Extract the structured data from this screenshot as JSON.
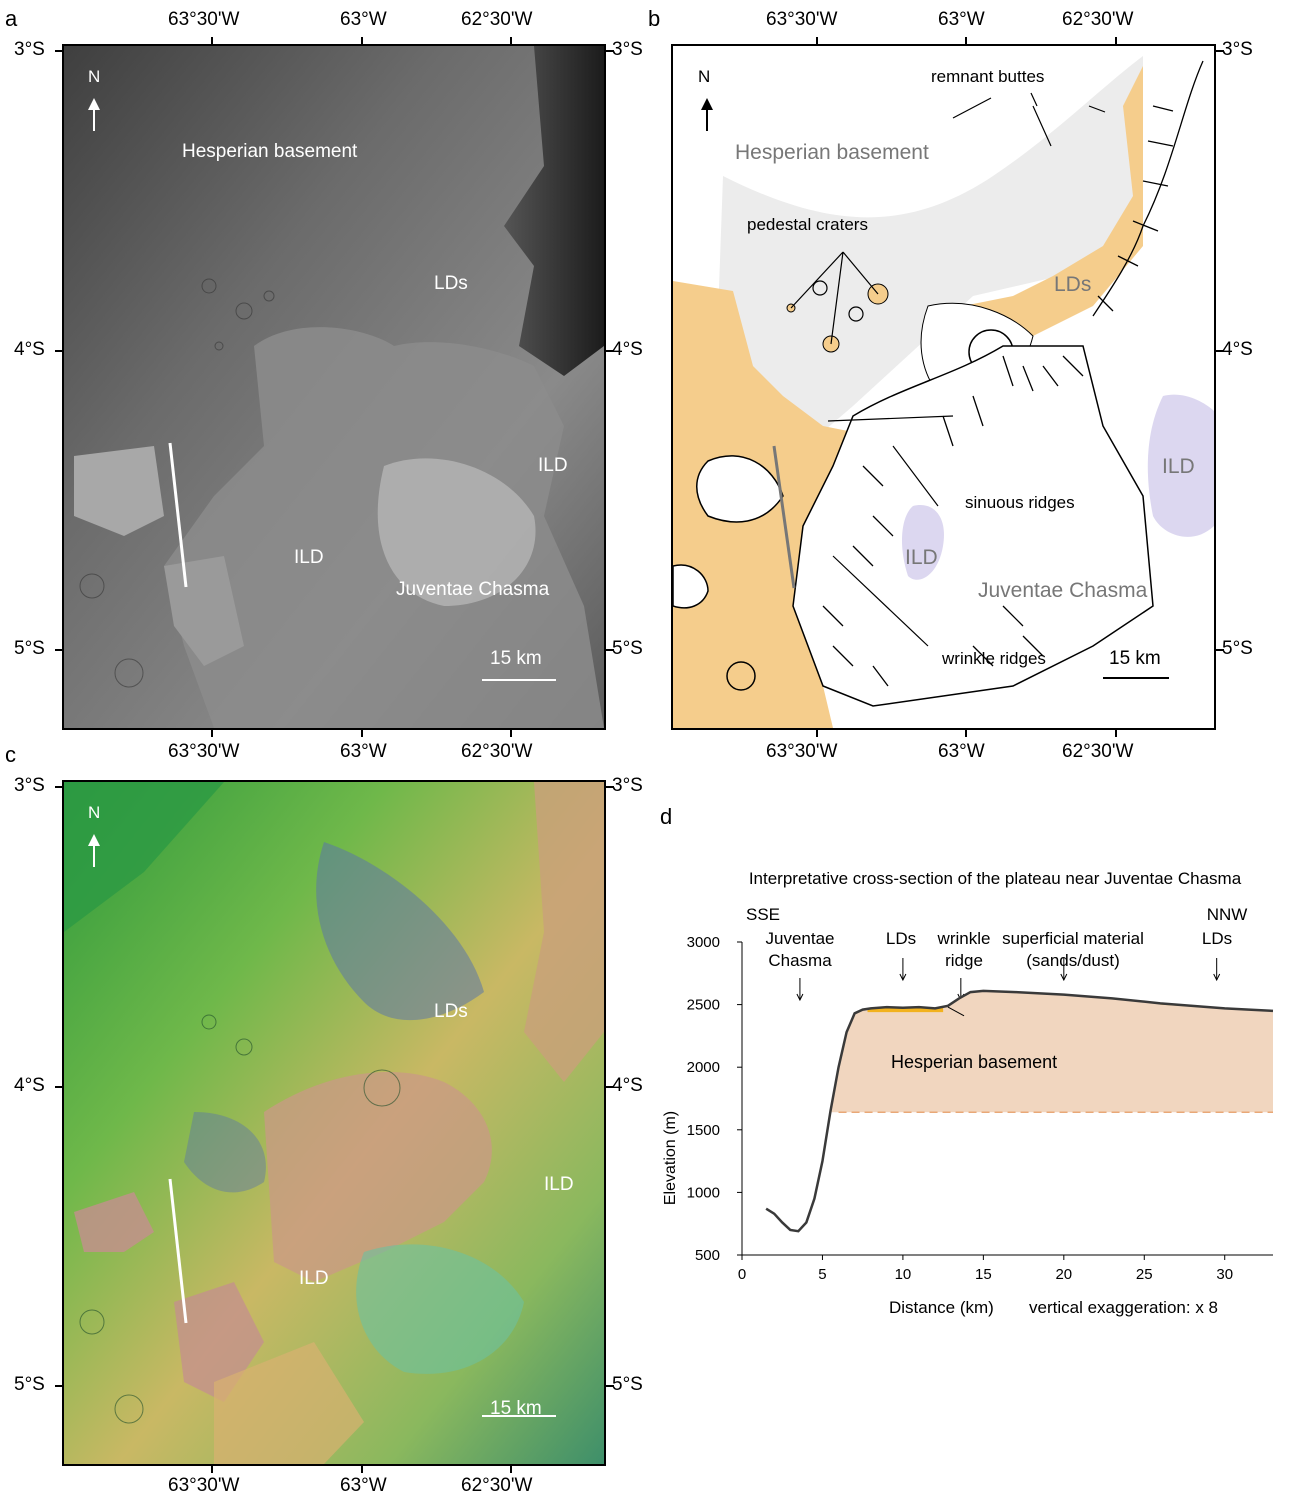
{
  "panels": {
    "a": {
      "letter": "a",
      "north": "N",
      "hesperian": "Hesperian basement",
      "lds": "LDs",
      "ild1": "ILD",
      "ild2": "ILD",
      "juventae": "Juventae Chasma",
      "scale": "15 km"
    },
    "b": {
      "letter": "b",
      "north": "N",
      "hesperian": "Hesperian basement",
      "lds": "LDs",
      "ild1": "ILD",
      "ild2": "ILD",
      "juventae": "Juventae Chasma",
      "scale": "15 km",
      "remnant": "remnant buttes",
      "pedestal": "pedestal craters",
      "sinuous": "sinuous ridges",
      "wrinkle": "wrinkle ridges"
    },
    "c": {
      "letter": "c",
      "north": "N",
      "lds": "LDs",
      "ild1": "ILD",
      "ild2": "ILD",
      "scale": "15 km"
    },
    "d": {
      "letter": "d",
      "title": "Interpretative cross-section of the plateau near Juventae Chasma",
      "sse": "SSE",
      "nnw": "NNW",
      "juventae_1": "Juventae",
      "juventae_2": "Chasma",
      "lds_left": "LDs",
      "wrinkle_1": "wrinkle",
      "wrinkle_2": "ridge",
      "superficial_1": "superficial material",
      "superficial_2": "(sands/dust)",
      "lds_right": "LDs",
      "hesperian": "Hesperian basement",
      "xlabel": "Distance (km)",
      "exaggeration": "vertical exaggeration: x 8",
      "ylabel": "Elevation (m)"
    }
  },
  "axes": {
    "lon": [
      "63°30'W",
      "63°W",
      "62°30'W"
    ],
    "lat": [
      "3°S",
      "4°S",
      "5°S"
    ]
  },
  "colors": {
    "lds_fill": "#f5cd8c",
    "basement_fill": "#ececec",
    "ild_fill": "#dcd7f0",
    "section_fill": "#f1d6bf",
    "lds_layer": "#f2b21e"
  },
  "chart_data": {
    "type": "area",
    "title": "Interpretative cross-section of the plateau near Juventae Chasma",
    "xlabel": "Distance (km)",
    "ylabel": "Elevation (m)",
    "xlim": [
      0,
      33
    ],
    "ylim": [
      500,
      3000
    ],
    "xticks": [
      0,
      5,
      10,
      15,
      20,
      25,
      30
    ],
    "yticks": [
      500,
      1000,
      1500,
      2000,
      2500,
      3000
    ],
    "profile": {
      "x": [
        1.5,
        2.0,
        2.5,
        3.0,
        3.5,
        4.0,
        4.5,
        5.0,
        5.5,
        6.0,
        6.5,
        7.0,
        7.5,
        8.0,
        9.0,
        10.0,
        11.0,
        12.0,
        12.8,
        13.5,
        14.2,
        15.0,
        17.0,
        20.0,
        23.0,
        26.0,
        28.0,
        30.0,
        31.5,
        33.0
      ],
      "y": [
        870,
        830,
        760,
        700,
        690,
        760,
        950,
        1250,
        1650,
        2000,
        2280,
        2430,
        2460,
        2470,
        2480,
        2475,
        2480,
        2470,
        2490,
        2550,
        2600,
        2610,
        2600,
        2580,
        2550,
        2510,
        2490,
        2470,
        2460,
        2450
      ]
    },
    "basement_base": 1640,
    "annotations": [
      {
        "text": "Juventae Chasma",
        "x": 3.6
      },
      {
        "text": "LDs",
        "x": 10.0
      },
      {
        "text": "wrinkle ridge",
        "x": 13.6
      },
      {
        "text": "superficial material (sands/dust)",
        "x": 20.0
      },
      {
        "text": "LDs",
        "x": 29.5
      }
    ]
  }
}
